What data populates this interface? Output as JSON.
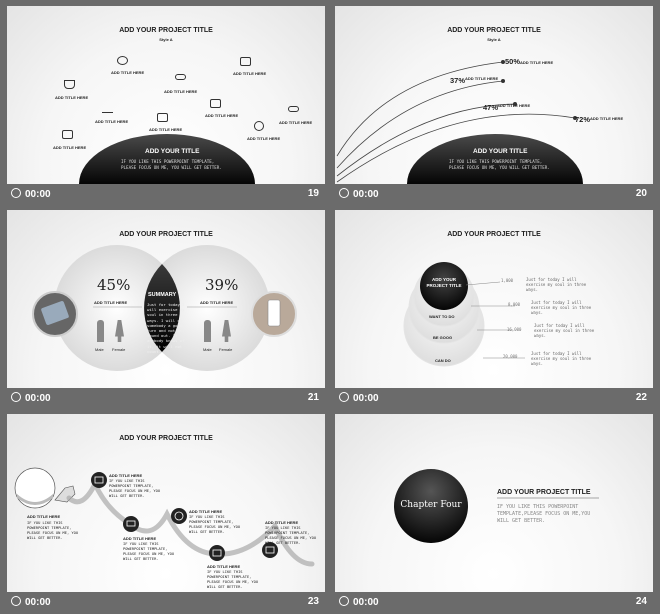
{
  "slides": [
    {
      "num": "19",
      "time": "00:00",
      "title": "ADD YOUR PROJECT TITLE",
      "subtitle": "Style A",
      "items": [
        "ADD TITLE HERE",
        "ADD TITLE HERE",
        "ADD TITLE HERE",
        "ADD TITLE HERE",
        "ADD TITLE HERE",
        "ADD TITLE HERE",
        "ADD TITLE HERE",
        "ADD TITLE HERE",
        "ADD TITLE HERE",
        "ADD TITLE HERE"
      ],
      "dome_title": "ADD YOUR TITLE",
      "dome_text": "IF YOU LIKE THIS POWERPOINT TEMPLATE, PLEASE FOCUS ON ME, YOU WILL GET BETTER."
    },
    {
      "num": "20",
      "time": "00:00",
      "title": "ADD YOUR PROJECT TITLE",
      "subtitle": "Style A",
      "arcs": [
        {
          "pct": "50%",
          "label": "ADD TITLE HERE"
        },
        {
          "pct": "37%",
          "label": "ADD TITLE HERE"
        },
        {
          "pct": "47%",
          "label": "ADD TITLE HERE"
        },
        {
          "pct": "72%",
          "label": "ADD TITLE HERE"
        }
      ],
      "dome_title": "ADD YOUR TITLE",
      "dome_text": "IF YOU LIKE THIS POWERPOINT TEMPLATE, PLEASE FOCUS ON ME, YOU WILL GET BETTER."
    },
    {
      "num": "21",
      "time": "00:00",
      "title": "ADD YOUR PROJECT TITLE",
      "left_pct": "45%",
      "left_label": "ADD TITLE HERE",
      "right_pct": "39%",
      "right_label": "ADD TITLE HERE",
      "summary_title": "SUMMARY",
      "summary_text": "Just for today I will exercise my soul in three ways. I will do somebody a good turn and not get found out. If anybody knows of it, it will not count.",
      "male": "Male",
      "female": "Female"
    },
    {
      "num": "22",
      "time": "00:00",
      "title": "ADD YOUR PROJECT TITLE",
      "core": "ADD YOUR PROJECT TITLE",
      "layers": [
        "WANT TO DO",
        "BE GOOG",
        "CAN DO"
      ],
      "rows": [
        {
          "value": "1,000",
          "text": "Just for today I will exercise my soul in three ways."
        },
        {
          "value": "8,000",
          "text": "Just for today I will exercise my soul in three ways."
        },
        {
          "value": "16,000",
          "text": "Just for today I will exercise my soul in three ways."
        },
        {
          "value": "20,000",
          "text": "Just for today I will exercise my soul in three ways."
        }
      ]
    },
    {
      "num": "23",
      "time": "00:00",
      "title": "ADD YOUR PROJECT TITLE",
      "steps": [
        {
          "title": "ADD TITLE HERE",
          "text": "IF YOU LIKE THIS POWERPOINT TEMPLATE, PLEASE FOCUS ON ME, YOU WILL GET BETTER."
        },
        {
          "title": "ADD TITLE HERE",
          "text": "IF YOU LIKE THIS POWERPOINT TEMPLATE, PLEASE FOCUS ON ME, YOU WILL GET BETTER."
        },
        {
          "title": "ADD TITLE HERE",
          "text": "IF YOU LIKE THIS POWERPOINT TEMPLATE, PLEASE FOCUS ON ME, YOU WILL GET BETTER."
        },
        {
          "title": "ADD TITLE HERE",
          "text": "IF YOU LIKE THIS POWERPOINT TEMPLATE, PLEASE FOCUS ON ME, YOU WILL GET BETTER."
        },
        {
          "title": "ADD TITLE HERE",
          "text": "IF YOU LIKE THIS POWERPOINT TEMPLATE, PLEASE FOCUS ON ME, YOU WILL GET BETTER."
        },
        {
          "title": "ADD TITLE HERE",
          "text": "IF YOU LIKE THIS POWERPOINT TEMPLATE, PLEASE FOCUS ON ME, YOU WILL GET BETTER."
        }
      ]
    },
    {
      "num": "24",
      "time": "00:00",
      "chapter": "Chapter Four",
      "title": "ADD YOUR PROJECT TITLE",
      "text": "IF YOU LIKE THIS POWERPOINT TEMPLATE,PLEASE FOCUS ON ME,YOU WILL GET BETTER."
    }
  ],
  "colors": {
    "background": "#6b6b6b",
    "dark": "#111111",
    "slide": "#f4f4f4"
  }
}
